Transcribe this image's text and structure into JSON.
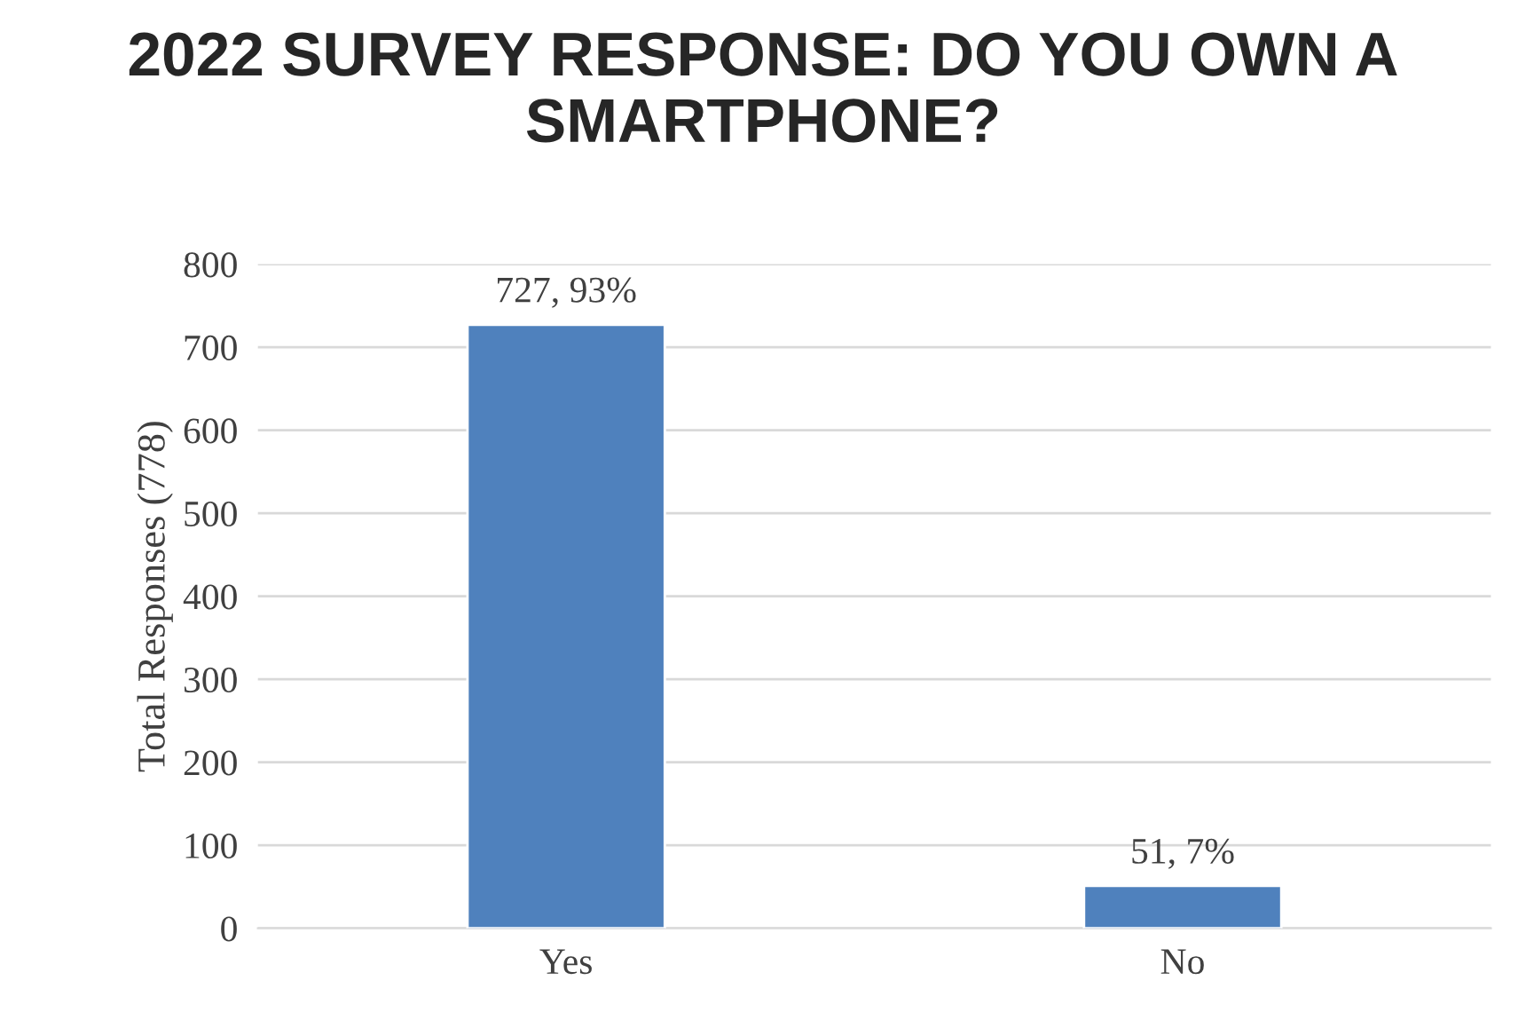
{
  "chart_data": {
    "type": "bar",
    "title": "2022 SURVEY RESPONSE: DO YOU OWN A SMARTPHONE?",
    "ylabel": "Total Responses (778)",
    "categories": [
      "Yes",
      "No"
    ],
    "values": [
      727,
      51
    ],
    "value_labels": [
      "727, 93%",
      "51, 7%"
    ],
    "color": "#4f81bd",
    "ylim": [
      0,
      800
    ],
    "yticks": [
      0,
      100,
      200,
      300,
      400,
      500,
      600,
      700,
      800
    ],
    "grid": "y"
  }
}
